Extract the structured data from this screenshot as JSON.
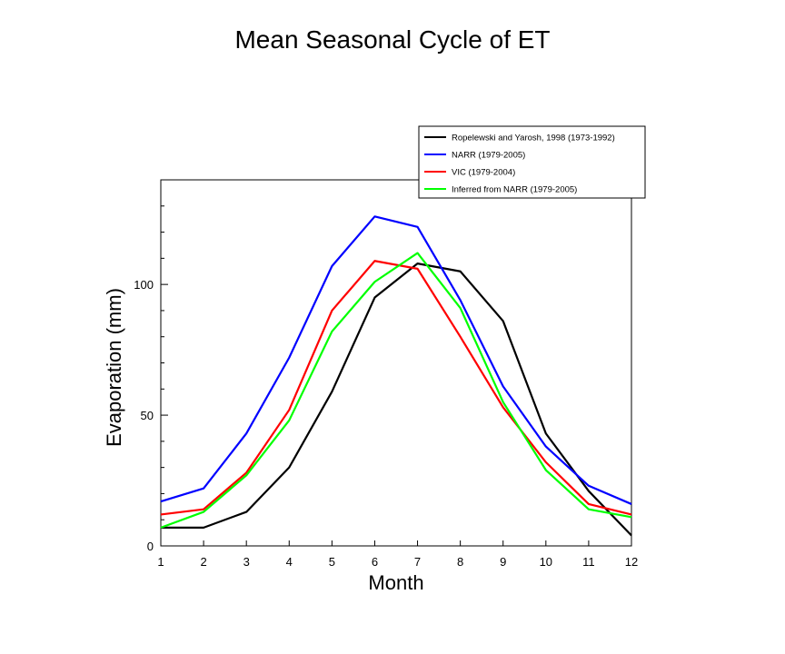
{
  "chart_data": {
    "type": "line",
    "title": "Mean Seasonal Cycle of ET",
    "xlabel": "Month",
    "ylabel": "Evaporation (mm)",
    "x": [
      1,
      2,
      3,
      4,
      5,
      6,
      7,
      8,
      9,
      10,
      11,
      12
    ],
    "xlim": [
      1,
      12
    ],
    "ylim": [
      0,
      140
    ],
    "yticks": [
      0,
      50,
      100
    ],
    "grid": false,
    "legend_position": "top-right",
    "series": [
      {
        "name": "Ropelewski and Yarosh, 1998 (1973-1992)",
        "color": "#000000",
        "values": [
          7,
          7,
          13,
          30,
          59,
          95,
          108,
          105,
          86,
          43,
          21,
          4
        ]
      },
      {
        "name": "NARR (1979-2005)",
        "color": "#0000ff",
        "values": [
          17,
          22,
          43,
          72,
          107,
          126,
          122,
          94,
          61,
          38,
          23,
          16
        ]
      },
      {
        "name": "VIC (1979-2004)",
        "color": "#ff0000",
        "values": [
          12,
          14,
          28,
          52,
          90,
          109,
          106,
          80,
          53,
          32,
          16,
          12
        ]
      },
      {
        "name": "Inferred from NARR (1979-2005)",
        "color": "#00ff00",
        "values": [
          7,
          13,
          27,
          48,
          82,
          101,
          112,
          91,
          55,
          29,
          14,
          11
        ]
      }
    ]
  }
}
